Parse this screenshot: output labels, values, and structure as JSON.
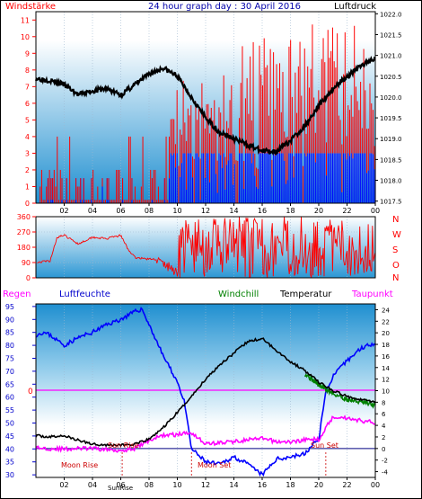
{
  "header": {
    "left_label": "Windstärke",
    "title": "24 hour graph day : 30 April 2016",
    "right_label": "Luftdruck"
  },
  "legend": {
    "regen": "Regen",
    "luftfeuchte": "Luftfeuchte",
    "windchill": "Windchill",
    "temperatur": "Temperatur",
    "taupunkt": "Taupunkt"
  },
  "annotations": {
    "sun_rise": "Sun Rise",
    "sun_set": "Sun Set",
    "moon_rise": "Moon Rise",
    "moon_set": "Moon Set",
    "sun_bottom": "SunRise"
  },
  "colors": {
    "wind": "#ff0000",
    "gust_blue": "#0000ff",
    "pressure": "#000000",
    "humidity": "#0000ff",
    "temperature": "#000000",
    "dewpoint": "#ff00ff",
    "windchill": "#008000",
    "left_axis": "#ff0000",
    "bg_top": "#bfe6f7",
    "bg_bottom": "#ffffff"
  },
  "chart_data": [
    {
      "type": "line",
      "title": "24 hour graph day : 30 April 2016",
      "x_tick_labels": [
        "02",
        "04",
        "06",
        "08",
        "10",
        "12",
        "14",
        "16",
        "18",
        "20",
        "22",
        "00"
      ],
      "y_left_label": "Windstärke",
      "y_left_ticks": [
        0,
        1,
        2,
        3,
        4,
        5,
        6,
        7,
        8,
        9,
        10,
        11
      ],
      "y_left_range": [
        0,
        11.5
      ],
      "y_right_label": "Luftdruck",
      "y_right_ticks": [
        1017.5,
        1018,
        1018.5,
        1019,
        1019.5,
        1020,
        1020.5,
        1021,
        1021.5,
        1022
      ],
      "y_right_range": [
        1017.45,
        1022.05
      ],
      "series": [
        {
          "name": "Luftdruck",
          "x": [
            0,
            1,
            2,
            3,
            4,
            5,
            6,
            7,
            8,
            9,
            10,
            11,
            12,
            13,
            14,
            15,
            16,
            17,
            18,
            19,
            20,
            21,
            22,
            23,
            24
          ],
          "values": [
            1020.45,
            1020.4,
            1020.3,
            1020.05,
            1020.15,
            1020.2,
            1020.05,
            1020.3,
            1020.55,
            1020.7,
            1020.5,
            1020.0,
            1019.5,
            1019.15,
            1019.0,
            1018.85,
            1018.7,
            1018.7,
            1018.95,
            1019.3,
            1019.8,
            1020.2,
            1020.5,
            1020.75,
            1020.95
          ]
        }
      ]
    },
    {
      "type": "line",
      "y_left_ticks": [
        0,
        90,
        180,
        270,
        360
      ],
      "y_left_range": [
        0,
        360
      ],
      "compass_labels": [
        "N",
        "W",
        "S",
        "O",
        "N"
      ],
      "series": [
        {
          "name": "Windrichtung",
          "x": [
            0,
            0.5,
            1,
            1.5,
            2,
            3,
            4,
            5,
            6,
            6.5,
            7,
            8,
            8.5,
            9,
            9.5,
            10,
            12,
            14,
            16,
            18,
            20,
            22,
            24
          ],
          "values": [
            90,
            95,
            100,
            240,
            250,
            200,
            240,
            230,
            250,
            170,
            120,
            110,
            110,
            80,
            60,
            30,
            150,
            130,
            140,
            160,
            200,
            180,
            200
          ]
        }
      ]
    },
    {
      "type": "line",
      "y_left_ticks": [
        30,
        35,
        40,
        45,
        50,
        55,
        60,
        65,
        70,
        75,
        80,
        85,
        90,
        95
      ],
      "y_left_range": [
        29,
        96
      ],
      "y_right_ticks": [
        -4,
        -2,
        0,
        2,
        4,
        6,
        8,
        10,
        12,
        14,
        16,
        18,
        20,
        22,
        24
      ],
      "y_right_range": [
        -5,
        25
      ],
      "left_axis_marker": "0",
      "series": [
        {
          "name": "Luftfeuchte",
          "x": [
            0,
            0.5,
            1,
            2,
            3,
            4,
            5,
            6,
            7,
            7.5,
            8,
            9,
            10,
            10.5,
            11,
            12,
            13,
            14,
            15,
            16,
            17,
            18,
            19,
            20,
            20.5,
            21,
            22,
            23,
            24
          ],
          "values": [
            84,
            85,
            84,
            80,
            83,
            85,
            88,
            90,
            93,
            94,
            88,
            76,
            66,
            58,
            40,
            35,
            34,
            37,
            34,
            30,
            36,
            37,
            38,
            44,
            62,
            68,
            74,
            79,
            81
          ]
        },
        {
          "name": "Temperatur",
          "x": [
            0,
            1,
            2,
            3,
            4,
            5,
            6,
            7,
            8,
            9,
            10,
            11,
            12,
            13,
            14,
            15,
            16,
            17,
            18,
            19,
            20,
            21,
            22,
            23,
            24
          ],
          "values": [
            2.2,
            2.0,
            2.2,
            1.4,
            0.8,
            0.6,
            0.6,
            0.7,
            1.6,
            3.6,
            6.2,
            9.0,
            12.0,
            14.5,
            16.5,
            18.5,
            19.0,
            17.0,
            15.0,
            13.5,
            11.5,
            10.0,
            9.0,
            8.5,
            8.0
          ]
        },
        {
          "name": "Taupunkt",
          "x": [
            0,
            1,
            2,
            3,
            4,
            5,
            6,
            7,
            8,
            9,
            10,
            11,
            12,
            13,
            14,
            15,
            16,
            17,
            18,
            19,
            20,
            21,
            22,
            23,
            24
          ],
          "values": [
            0.1,
            0.0,
            -0.1,
            0.0,
            0.0,
            -0.2,
            -0.3,
            0.0,
            1.4,
            2.3,
            2.4,
            2.8,
            0.8,
            1.0,
            1.2,
            1.5,
            1.7,
            1.2,
            1.1,
            1.5,
            1.6,
            5.5,
            5.3,
            4.8,
            4.5
          ]
        },
        {
          "name": "Windchill",
          "x": [
            19.0,
            20,
            21,
            22,
            23,
            24
          ],
          "values": [
            13.0,
            11.0,
            9.5,
            8.5,
            8.0,
            7.5
          ]
        }
      ]
    }
  ]
}
